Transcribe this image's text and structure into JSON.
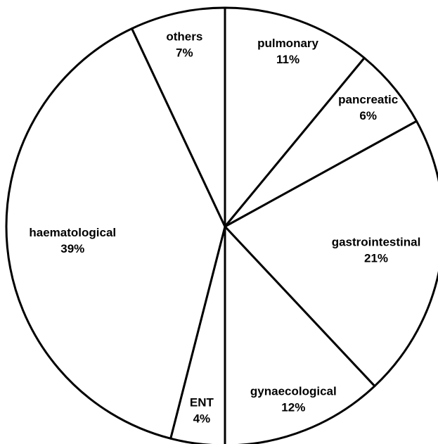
{
  "chart_data": {
    "type": "pie",
    "categories": [
      "pulmonary",
      "pancreatic",
      "gastrointestinal",
      "gynaecological",
      "ENT",
      "haematological",
      "others"
    ],
    "values": [
      11,
      6,
      21,
      12,
      4,
      39,
      7
    ],
    "value_labels": [
      "11%",
      "6%",
      "21%",
      "12%",
      "4%",
      "39%",
      "7%"
    ],
    "color": "#ffffff"
  }
}
